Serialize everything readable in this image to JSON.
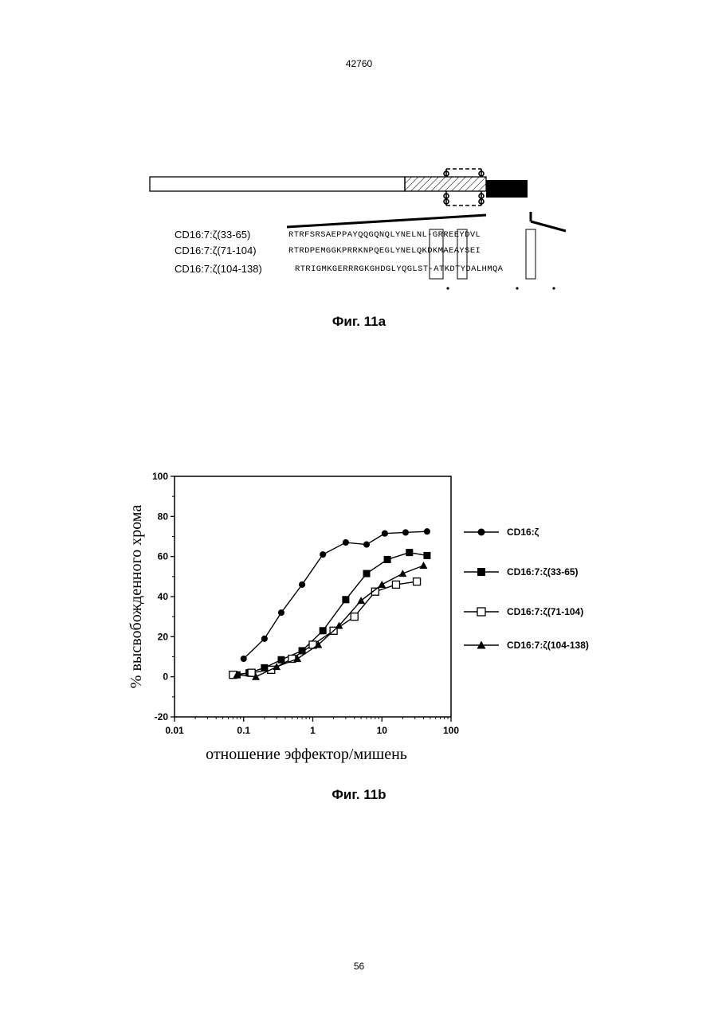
{
  "header": {
    "patent_number": "42760"
  },
  "figure_a": {
    "caption": "Фиг. 11a",
    "sequences": [
      {
        "label": "CD16:7:ζ(33-65)",
        "seq": "RTRFSRSAEPPAYQQGQNQLYNELNL-GRREEYDVL"
      },
      {
        "label": "CD16:7:ζ(71-104)",
        "seq": "RTRDPEMGGKPRRKNPQEGLYNELQKDKMAEAYSEI"
      },
      {
        "label": "CD16:7:ζ(104-138)",
        "seq": "RTRIGMKGERRRGKGHDGLYQGLST-ATKDTYDALHMQA"
      }
    ]
  },
  "figure_b": {
    "caption": "Фиг. 11b",
    "chart_data": {
      "type": "scatter",
      "xscale": "log",
      "xlim": [
        0.01,
        100
      ],
      "ylim": [
        -20,
        100
      ],
      "xlabel": "отношение эффектор/мишень",
      "ylabel": "% высвобожденного хрома",
      "x_tick_labels": [
        "0.01",
        "0.1",
        "1",
        "10",
        "100"
      ],
      "y_tick_labels": [
        "-20",
        "0",
        "20",
        "40",
        "60",
        "80",
        "100"
      ],
      "legend_position": "right",
      "series": [
        {
          "name": "CD16:ζ",
          "marker": "filled-circle",
          "x": [
            0.1,
            0.2,
            0.35,
            0.7,
            1.4,
            3,
            6,
            11,
            22,
            45
          ],
          "y": [
            9,
            19,
            32,
            46,
            61,
            67,
            66,
            71.5,
            72,
            72.5
          ]
        },
        {
          "name": "CD16:7:ζ(33-65)",
          "marker": "filled-square",
          "x": [
            0.08,
            0.12,
            0.2,
            0.35,
            0.7,
            1.4,
            3,
            6,
            12,
            25,
            45
          ],
          "y": [
            1,
            2,
            4.5,
            8.5,
            13,
            23,
            38.5,
            51.5,
            58.5,
            62,
            60.5
          ]
        },
        {
          "name": "CD16:7:ζ(71-104)",
          "marker": "open-square",
          "x": [
            0.07,
            0.13,
            0.25,
            0.5,
            1,
            2,
            4,
            8,
            16,
            32
          ],
          "y": [
            1,
            2,
            3.5,
            9,
            16,
            23,
            30,
            42.5,
            46,
            47.5
          ]
        },
        {
          "name": "CD16:7:ζ(104-138)",
          "marker": "filled-triangle",
          "x": [
            0.08,
            0.15,
            0.3,
            0.6,
            1.2,
            2.4,
            5,
            10,
            20,
            40
          ],
          "y": [
            1,
            0,
            5,
            9,
            16,
            25.5,
            38,
            46,
            51.5,
            55.5
          ]
        }
      ]
    }
  },
  "footer": {
    "page_number": "56"
  }
}
